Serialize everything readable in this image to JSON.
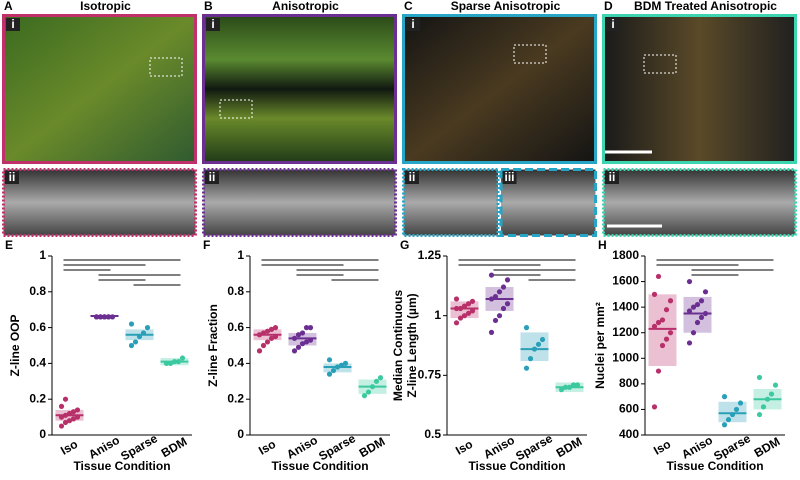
{
  "panels": [
    {
      "letter": "A",
      "title": "Isotropic",
      "color": "#c0306a",
      "insets": [
        "i",
        "ii"
      ]
    },
    {
      "letter": "B",
      "title": "Anisotropic",
      "color": "#6b2f92",
      "insets": [
        "i",
        "ii"
      ]
    },
    {
      "letter": "C",
      "title": "Sparse Anisotropic",
      "color": "#27a5c6",
      "insets": [
        "i",
        "ii",
        "iii"
      ]
    },
    {
      "letter": "D",
      "title": "BDM Treated Anisotropic",
      "color": "#3dd4b0",
      "insets": [
        "i",
        "ii"
      ]
    }
  ],
  "chart_data": [
    {
      "type": "dotplot",
      "label": "E",
      "ylabel": "Z-line OOP",
      "xlabel": "Tissue Condition",
      "categories": [
        "Iso",
        "Aniso",
        "Sparse",
        "BDM"
      ],
      "colors": [
        "#b8306a",
        "#6b2f92",
        "#2a9fb8",
        "#3cc9a0"
      ],
      "ylim": [
        0,
        1
      ],
      "yticks": [
        0,
        0.2,
        0.4,
        0.6,
        0.8,
        1
      ],
      "points": [
        [
          0.05,
          0.07,
          0.08,
          0.09,
          0.1,
          0.1,
          0.11,
          0.12,
          0.13,
          0.14,
          0.16,
          0.2
        ],
        [
          0.66,
          0.66,
          0.66,
          0.66,
          0.66,
          0.66,
          0.66,
          0.66,
          0.66
        ],
        [
          0.5,
          0.52,
          0.55,
          0.57,
          0.6,
          0.62
        ],
        [
          0.4,
          0.4,
          0.41,
          0.41,
          0.43
        ]
      ],
      "means": [
        0.11,
        0.665,
        0.56,
        0.41
      ],
      "box_low": [
        0.08,
        0.66,
        0.53,
        0.39
      ],
      "box_high": [
        0.14,
        0.67,
        0.59,
        0.43
      ]
    },
    {
      "type": "dotplot",
      "label": "F",
      "ylabel": "Z-line Fraction",
      "xlabel": "Tissue Condition",
      "categories": [
        "Iso",
        "Aniso",
        "Sparse",
        "BDM"
      ],
      "colors": [
        "#b8306a",
        "#6b2f92",
        "#2a9fb8",
        "#3cc9a0"
      ],
      "ylim": [
        0,
        1
      ],
      "yticks": [
        0,
        0.2,
        0.4,
        0.6,
        0.8,
        1
      ],
      "points": [
        [
          0.47,
          0.5,
          0.52,
          0.54,
          0.55,
          0.56,
          0.57,
          0.58,
          0.59,
          0.6
        ],
        [
          0.47,
          0.49,
          0.51,
          0.52,
          0.53,
          0.54,
          0.56,
          0.57,
          0.6,
          0.6
        ],
        [
          0.34,
          0.36,
          0.38,
          0.39,
          0.4,
          0.42
        ],
        [
          0.22,
          0.24,
          0.27,
          0.3,
          0.32
        ]
      ],
      "means": [
        0.56,
        0.54,
        0.38,
        0.27
      ],
      "box_low": [
        0.53,
        0.5,
        0.35,
        0.23
      ],
      "box_high": [
        0.59,
        0.57,
        0.4,
        0.31
      ]
    },
    {
      "type": "dotplot",
      "label": "G",
      "ylabel": [
        "Median Continuous",
        "Z-line Length (µm)"
      ],
      "xlabel": "Tissue Condition",
      "categories": [
        "Iso",
        "Aniso",
        "Sparse",
        "BDM"
      ],
      "colors": [
        "#b8306a",
        "#6b2f92",
        "#2a9fb8",
        "#3cc9a0"
      ],
      "ylim": [
        0.5,
        1.25
      ],
      "yticks": [
        0.5,
        0.75,
        1,
        1.25
      ],
      "points": [
        [
          0.97,
          0.99,
          1.0,
          1.01,
          1.02,
          1.03,
          1.03,
          1.04,
          1.05,
          1.06,
          1.07
        ],
        [
          0.93,
          0.98,
          1.0,
          1.03,
          1.05,
          1.07,
          1.08,
          1.1,
          1.12,
          1.15,
          1.17
        ],
        [
          0.78,
          0.82,
          0.86,
          0.88,
          0.9,
          0.95
        ],
        [
          0.69,
          0.7,
          0.7,
          0.71,
          0.71
        ]
      ],
      "means": [
        1.03,
        1.07,
        0.86,
        0.7
      ],
      "box_low": [
        0.99,
        1.02,
        0.81,
        0.68
      ],
      "box_high": [
        1.06,
        1.12,
        0.93,
        0.72
      ]
    },
    {
      "type": "dotplot",
      "label": "H",
      "ylabel": "Nuclei per mm²",
      "xlabel": "Tissue Condition",
      "categories": [
        "Iso",
        "Aniso",
        "Sparse",
        "BDM"
      ],
      "colors": [
        "#b8306a",
        "#6b2f92",
        "#2a9fb8",
        "#3cc9a0"
      ],
      "ylim": [
        400,
        1800
      ],
      "yticks": [
        400,
        600,
        800,
        1000,
        1200,
        1400,
        1600,
        1800
      ],
      "points": [
        [
          620,
          900,
          1100,
          1150,
          1200,
          1250,
          1280,
          1300,
          1380,
          1450,
          1500,
          1640
        ],
        [
          1120,
          1200,
          1280,
          1320,
          1350,
          1370,
          1400,
          1420,
          1450,
          1520,
          1600
        ],
        [
          480,
          520,
          560,
          600,
          650,
          700
        ],
        [
          560,
          620,
          680,
          720,
          790,
          850
        ]
      ],
      "means": [
        1230,
        1350,
        570,
        680
      ],
      "box_low": [
        940,
        1200,
        500,
        600
      ],
      "box_high": [
        1500,
        1480,
        660,
        760
      ]
    }
  ]
}
